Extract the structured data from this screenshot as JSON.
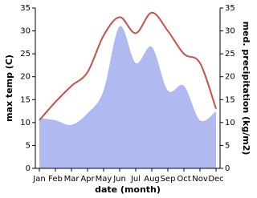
{
  "chart_data": {
    "type": "line",
    "x_label": "date (month)",
    "y_label": "max temp (C)",
    "y2_label": "med. precipitation (kg/m2)",
    "categories": [
      "Jan",
      "Feb",
      "Mar",
      "Apr",
      "May",
      "Jun",
      "Jul",
      "Aug",
      "Sep",
      "Oct",
      "Nov",
      "Dec"
    ],
    "series": [
      {
        "name": "med. precipitation (kg/m2)",
        "type": "area",
        "axis": "y2",
        "color": "#b0baf0",
        "values": [
          11,
          10.5,
          9.5,
          12,
          17,
          31,
          23,
          26.5,
          17,
          18,
          10.5,
          12.5
        ]
      },
      {
        "name": "max temp (C)",
        "type": "line",
        "axis": "y",
        "color": "#c9504b",
        "values": [
          10.5,
          14.5,
          18,
          21,
          29,
          33,
          29.5,
          34,
          30,
          25,
          23,
          13
        ]
      }
    ],
    "ylim": [
      0,
      35
    ],
    "yticks": [
      0,
      5,
      10,
      15,
      20,
      25,
      30,
      35
    ],
    "y2lim": [
      0,
      35
    ],
    "y2ticks": [
      0,
      5,
      10,
      15,
      20,
      25,
      30,
      35
    ]
  }
}
